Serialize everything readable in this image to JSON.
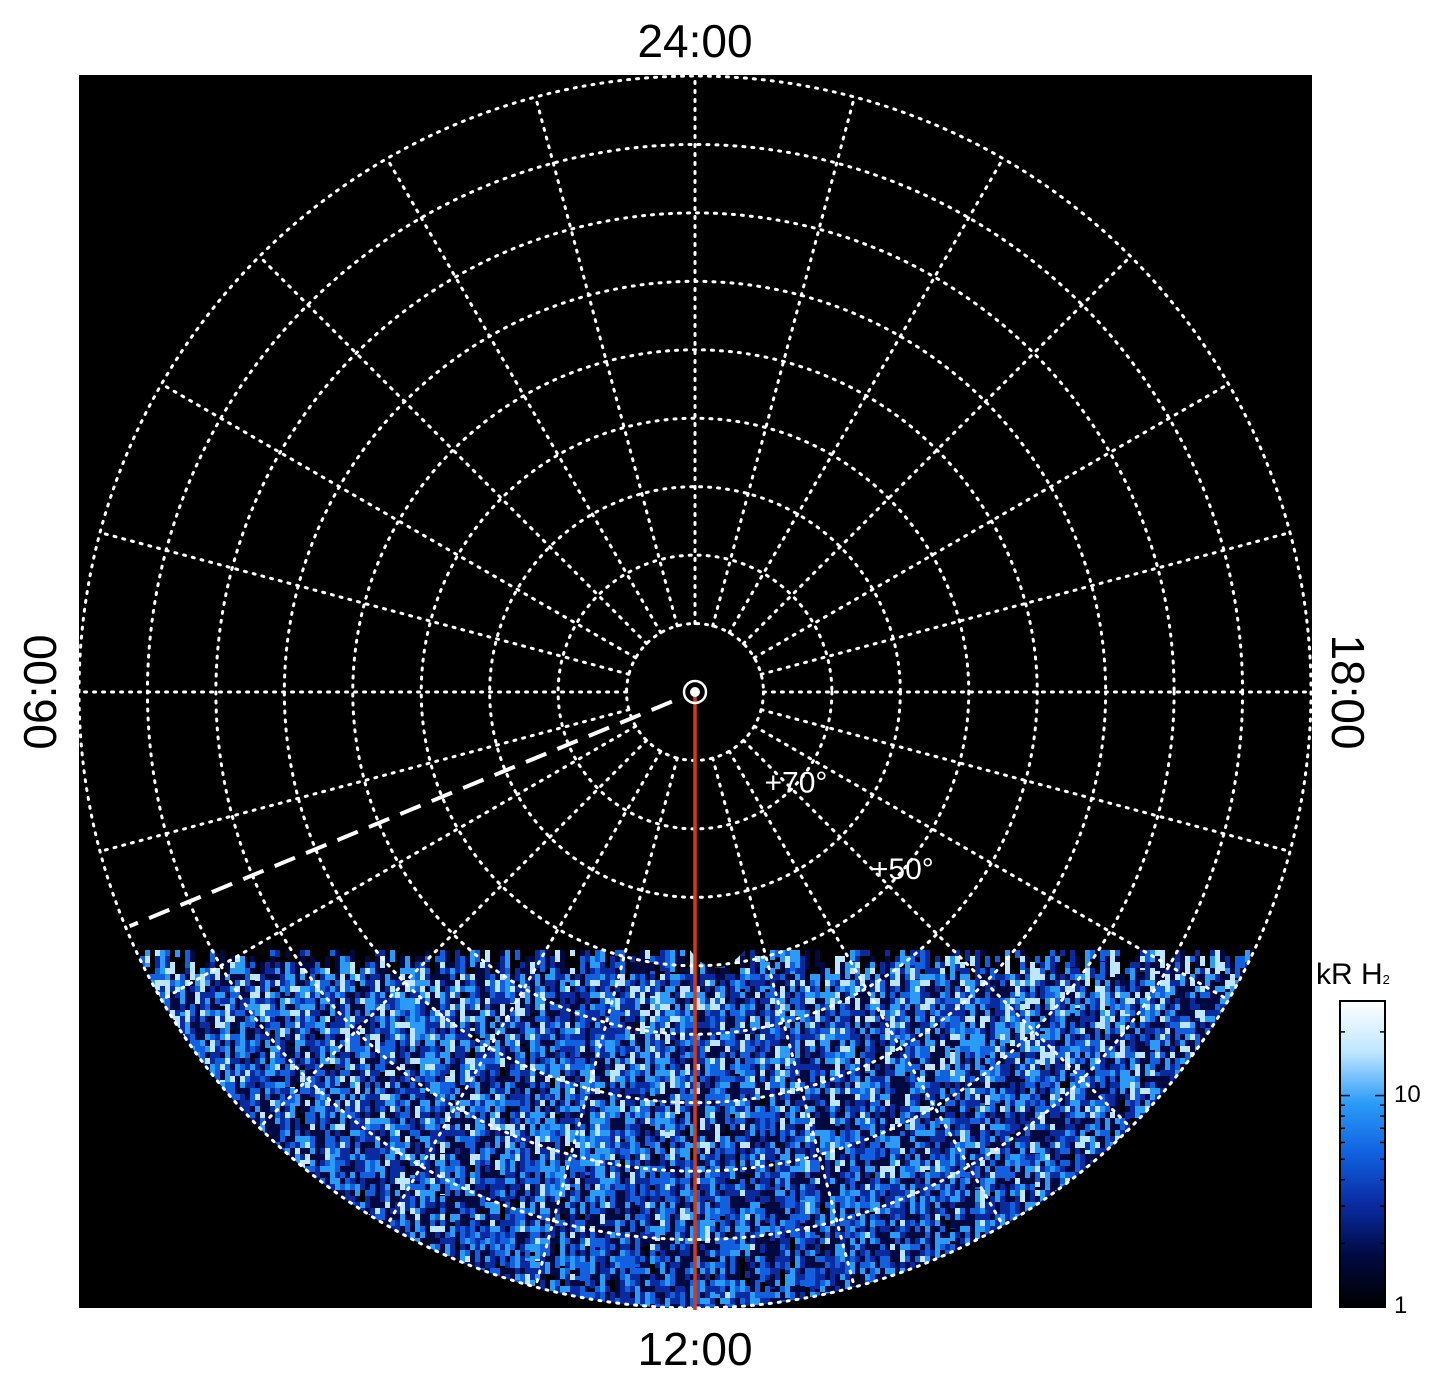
{
  "labels": {
    "top": "24:00",
    "bottom": "12:00",
    "left": "06:00",
    "right": "18:00"
  },
  "latitude_labels": [
    {
      "text": "+70°",
      "latitude": 70
    },
    {
      "text": "+50°",
      "latitude": 50
    }
  ],
  "grid": {
    "latitude_circles": [
      80,
      70,
      60,
      50,
      40,
      30,
      20,
      10
    ],
    "meridian_step_hours": 1,
    "line_color": "#ffffff",
    "background": "#000000"
  },
  "meridian_line": {
    "local_time": "12:00",
    "color": "#d83a10"
  },
  "dashed_line": {
    "local_time": "07:30",
    "color": "#ffffff"
  },
  "colorbar": {
    "title_main": "kR H",
    "title_sub": "2",
    "scale": "log",
    "ticks": [
      {
        "value": 10,
        "label": "10"
      },
      {
        "value": 1,
        "label": "1"
      }
    ],
    "colors": [
      "#000000",
      "#000a40",
      "#0a2aa0",
      "#1060e0",
      "#2a9cf8",
      "#bfe6ff",
      "#ffffff"
    ]
  }
}
